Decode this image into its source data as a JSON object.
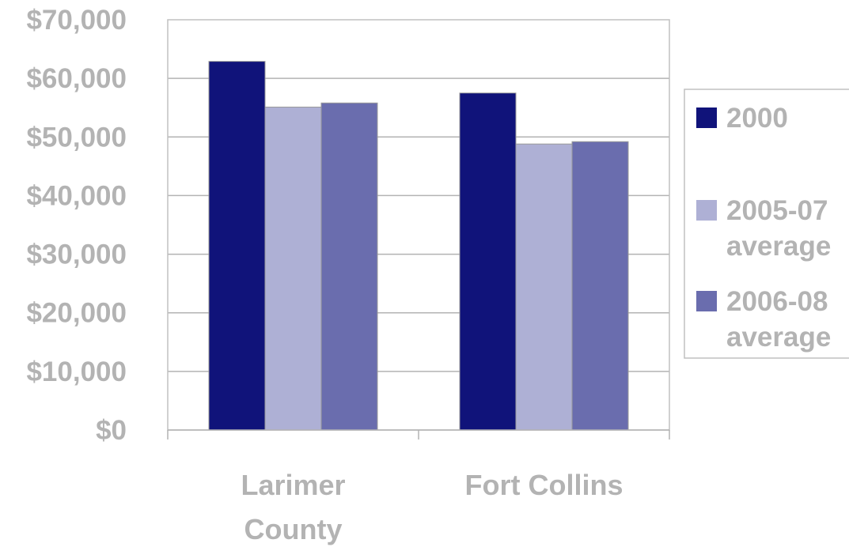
{
  "chart_data": {
    "type": "bar",
    "categories": [
      "Larimer County",
      "Fort Collins"
    ],
    "series": [
      {
        "name": "2000",
        "values": [
          62900,
          57500
        ],
        "color": "#10137a"
      },
      {
        "name": "2005-07 average",
        "values": [
          55100,
          48800
        ],
        "color": "#aeb0d5"
      },
      {
        "name": "2006-08 average",
        "values": [
          55800,
          49200
        ],
        "color": "#6a6dae"
      }
    ],
    "ylim": [
      0,
      70000
    ],
    "yticks": [
      "$0",
      "$10,000",
      "$20,000",
      "$30,000",
      "$40,000",
      "$50,000",
      "$60,000",
      "$70,000"
    ],
    "grid": true,
    "legend_position": "right",
    "title": "",
    "xlabel": "",
    "ylabel": ""
  }
}
